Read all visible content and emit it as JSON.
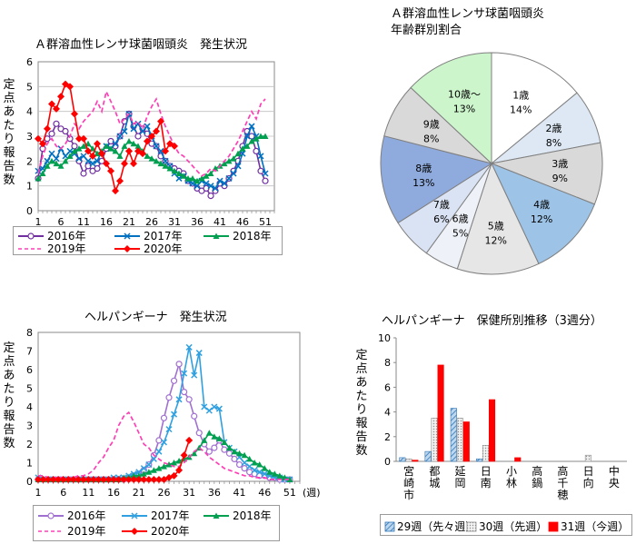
{
  "chart_data": [
    {
      "id": "strep",
      "type": "line",
      "title": "Ａ群溶血性レンサ球菌咽頭炎　発生状況",
      "ylabel": "定点あたり報告数",
      "ylim": [
        0,
        6
      ],
      "yticks": [
        "0",
        "1",
        "2",
        "3",
        "4",
        "5",
        "6"
      ],
      "xlim": [
        1,
        53
      ],
      "xticks": [
        "1",
        "6",
        "11",
        "16",
        "21",
        "26",
        "31",
        "36",
        "41",
        "46",
        "51"
      ],
      "grid": true,
      "legend_position": "bottom",
      "series": [
        {
          "name": "2016年",
          "color": "#7030a0",
          "marker": "circle",
          "dash": false,
          "values": [
            1.3,
            2.5,
            2.9,
            3.1,
            3.5,
            3.3,
            3.2,
            2.9,
            2.6,
            2.0,
            1.5,
            1.8,
            1.6,
            1.7,
            2.0,
            2.5,
            2.8,
            2.6,
            3.0,
            3.6,
            3.9,
            3.4,
            3.0,
            3.3,
            3.1,
            2.7,
            2.6,
            2.2,
            2.0,
            1.8,
            1.7,
            1.6,
            1.5,
            1.2,
            1.1,
            0.9,
            0.8,
            0.9,
            0.6,
            0.8,
            1.1,
            1.0,
            1.3,
            1.6,
            2.0,
            2.6,
            3.2,
            3.0,
            2.4,
            1.6,
            1.2
          ]
        },
        {
          "name": "2017年",
          "color": "#0070c0",
          "marker": "x",
          "dash": false,
          "values": [
            1.6,
            1.7,
            2.0,
            2.3,
            2.1,
            2.5,
            2.2,
            2.4,
            2.3,
            2.1,
            2.2,
            2.0,
            1.9,
            2.0,
            2.4,
            2.6,
            2.5,
            2.7,
            3.0,
            3.2,
            3.9,
            3.3,
            3.5,
            3.2,
            3.4,
            3.0,
            2.6,
            2.4,
            2.0,
            1.8,
            1.5,
            1.3,
            1.4,
            1.2,
            1.1,
            1.0,
            1.2,
            1.1,
            1.0,
            0.9,
            1.2,
            1.1,
            1.3,
            1.5,
            1.8,
            2.3,
            3.0,
            3.4,
            3.0,
            2.2,
            1.5
          ]
        },
        {
          "name": "2018年",
          "color": "#00a050",
          "marker": "triangle",
          "dash": false,
          "values": [
            1.3,
            1.5,
            1.8,
            2.0,
            1.9,
            1.8,
            2.0,
            2.2,
            2.4,
            2.5,
            2.6,
            2.7,
            2.5,
            2.3,
            2.4,
            2.6,
            2.5,
            2.4,
            2.2,
            2.6,
            2.8,
            2.7,
            2.6,
            2.4,
            2.2,
            2.1,
            2.0,
            1.9,
            1.8,
            1.7,
            1.6,
            1.5,
            1.4,
            1.3,
            1.3,
            1.2,
            1.3,
            1.4,
            1.5,
            1.7,
            1.8,
            1.9,
            2.0,
            2.1,
            2.3,
            2.5,
            2.6,
            2.8,
            2.9,
            3.0,
            3.0
          ]
        },
        {
          "name": "2019年",
          "color": "#ff3fb5",
          "marker": "none",
          "dash": true,
          "values": [
            1.5,
            2.2,
            2.7,
            2.9,
            2.6,
            2.5,
            2.7,
            3.0,
            3.5,
            3.3,
            3.6,
            3.8,
            4.0,
            4.4,
            4.0,
            4.8,
            4.4,
            4.0,
            3.5,
            3.7,
            3.9,
            3.5,
            3.6,
            3.3,
            3.8,
            4.2,
            4.5,
            3.9,
            3.4,
            3.0,
            2.6,
            2.3,
            2.2,
            2.0,
            1.8,
            1.6,
            1.4,
            1.5,
            1.7,
            1.6,
            1.8,
            2.0,
            2.2,
            2.5,
            2.8,
            3.2,
            3.6,
            4.0,
            3.7,
            4.3,
            4.5
          ]
        },
        {
          "name": "2020年",
          "color": "#ff0000",
          "marker": "diamond",
          "dash": false,
          "values": [
            2.9,
            2.7,
            3.3,
            4.3,
            4.1,
            4.6,
            5.1,
            5.0,
            3.9,
            2.9,
            2.9,
            2.4,
            2.2,
            2.7,
            2.3,
            1.9,
            1.6,
            0.8,
            1.2,
            1.9,
            2.4,
            1.9,
            2.4,
            2.3,
            2.8,
            3.0,
            3.2,
            3.6,
            2.4,
            2.7,
            2.6
          ]
        }
      ]
    },
    {
      "id": "strep_age",
      "type": "pie",
      "title": "Ａ群溶血性レンサ球菌咽頭炎",
      "subtitle": "年齢群別割合",
      "slices": [
        {
          "label": "1歳",
          "pct_label": "14%",
          "value": 14,
          "color": "#ffffff"
        },
        {
          "label": "2歳",
          "pct_label": "8%",
          "value": 8,
          "color": "#dde8f4"
        },
        {
          "label": "3歳",
          "pct_label": "9%",
          "value": 9,
          "color": "#d9d9d9"
        },
        {
          "label": "4歳",
          "pct_label": "12%",
          "value": 12,
          "color": "#9dc3e6"
        },
        {
          "label": "5歳",
          "pct_label": "12%",
          "value": 12,
          "color": "#e7e6e6"
        },
        {
          "label": "6歳",
          "pct_label": "5%",
          "value": 5,
          "color": "#eef2f8"
        },
        {
          "label": "7歳",
          "pct_label": "6%",
          "value": 6,
          "color": "#dae3f3"
        },
        {
          "label": "8歳",
          "pct_label": "13%",
          "value": 13,
          "color": "#8faadc"
        },
        {
          "label": "9歳",
          "pct_label": "8%",
          "value": 8,
          "color": "#d9d9d9"
        },
        {
          "label": "10歳～",
          "pct_label": "13%",
          "value": 13,
          "color": "#ccf5cc"
        }
      ]
    },
    {
      "id": "herpangina",
      "type": "line",
      "title": "ヘルパンギーナ　発生状況",
      "ylabel": "定点あたり報告数",
      "ylim": [
        0,
        8
      ],
      "yticks": [
        "0",
        "1",
        "2",
        "3",
        "4",
        "5",
        "6",
        "7",
        "8"
      ],
      "xlim": [
        1,
        53
      ],
      "xticks": [
        "1",
        "6",
        "11",
        "16",
        "21",
        "26",
        "31",
        "36",
        "41",
        "46",
        "51"
      ],
      "xunit": "(週)",
      "grid": false,
      "legend_position": "bottom",
      "series": [
        {
          "name": "2016年",
          "color": "#a070d0",
          "marker": "circle",
          "dash": false,
          "values": [
            0.1,
            0.1,
            0.1,
            0.1,
            0.1,
            0.1,
            0.1,
            0.1,
            0.1,
            0.1,
            0.1,
            0.1,
            0.1,
            0.1,
            0.1,
            0.1,
            0.1,
            0.1,
            0.2,
            0.3,
            0.4,
            0.6,
            0.9,
            1.4,
            2.2,
            3.4,
            4.5,
            5.4,
            6.3,
            4.8,
            4.4,
            3.5,
            2.6,
            2.0,
            1.6,
            1.8,
            2.2,
            1.7,
            1.5,
            1.2,
            0.9,
            0.7,
            0.5,
            0.4,
            0.3,
            0.3,
            0.2,
            0.2,
            0.1,
            0.1,
            0.1
          ]
        },
        {
          "name": "2017年",
          "color": "#30a0e0",
          "marker": "x",
          "dash": false,
          "values": [
            0.2,
            0.1,
            0.1,
            0.1,
            0.1,
            0.1,
            0.1,
            0.1,
            0.1,
            0.1,
            0.1,
            0.1,
            0.1,
            0.1,
            0.1,
            0.2,
            0.2,
            0.2,
            0.3,
            0.4,
            0.5,
            0.7,
            0.9,
            1.2,
            1.6,
            2.1,
            2.8,
            3.6,
            4.4,
            5.8,
            7.2,
            5.7,
            6.9,
            4.0,
            3.8,
            4.0,
            3.9,
            2.1,
            1.8,
            1.6,
            1.3,
            1.0,
            0.8,
            0.6,
            0.5,
            0.4,
            0.3,
            0.2,
            0.2,
            0.1,
            0.1
          ]
        },
        {
          "name": "2018年",
          "color": "#00a050",
          "marker": "triangle",
          "dash": false,
          "values": [
            0.1,
            0.1,
            0.1,
            0.1,
            0.1,
            0.1,
            0.1,
            0.1,
            0.1,
            0.1,
            0.1,
            0.1,
            0.1,
            0.1,
            0.1,
            0.1,
            0.1,
            0.2,
            0.2,
            0.3,
            0.3,
            0.4,
            0.5,
            0.6,
            0.7,
            0.8,
            0.9,
            1.0,
            1.1,
            1.2,
            1.3,
            1.5,
            1.8,
            2.2,
            2.6,
            2.4,
            2.3,
            2.1,
            1.8,
            1.6,
            1.5,
            1.4,
            1.2,
            1.0,
            0.9,
            0.7,
            0.5,
            0.4,
            0.3,
            0.2,
            0.1
          ]
        },
        {
          "name": "2019年",
          "color": "#ff3fb5",
          "marker": "none",
          "dash": true,
          "values": [
            0.3,
            0.3,
            0.2,
            0.2,
            0.2,
            0.2,
            0.2,
            0.2,
            0.3,
            0.3,
            0.4,
            0.6,
            1.0,
            1.3,
            1.8,
            2.2,
            3.0,
            3.5,
            3.7,
            3.2,
            2.6,
            2.0,
            1.8,
            1.4,
            1.2,
            1.0,
            0.9,
            0.8,
            0.8,
            1.0,
            1.3,
            1.6,
            1.8,
            1.6,
            1.3,
            1.1,
            0.9,
            0.7,
            0.6,
            0.5,
            0.4,
            0.3,
            0.3,
            0.2,
            0.2,
            0.2,
            0.1,
            0.1,
            0.1,
            0.1,
            0.1
          ]
        },
        {
          "name": "2020年",
          "color": "#ff0000",
          "marker": "diamond",
          "dash": false,
          "values": [
            0.1,
            0.1,
            0.1,
            0.1,
            0.1,
            0.1,
            0.1,
            0.1,
            0.1,
            0.1,
            0.1,
            0.1,
            0.1,
            0.1,
            0.1,
            0.1,
            0.1,
            0.1,
            0.1,
            0.1,
            0.1,
            0.1,
            0.1,
            0.1,
            0.1,
            0.1,
            0.2,
            0.3,
            0.6,
            1.4,
            2.2
          ]
        }
      ]
    },
    {
      "id": "herpangina_offices",
      "type": "bar",
      "title": "ヘルパンギーナ　保健所別推移（3週分）",
      "ylabel": "定点あたり報告数",
      "ylim": [
        0,
        10
      ],
      "yticks": [
        "0",
        "2",
        "4",
        "6",
        "8",
        "10"
      ],
      "categories": [
        "宮崎市",
        "都城",
        "延岡",
        "日南",
        "小林",
        "高鍋",
        "高千穂",
        "日向",
        "中央"
      ],
      "legend_position": "bottom",
      "series": [
        {
          "name": "29週（先々週）",
          "color": "#5b9bd5",
          "pattern": "hatch",
          "values": [
            0.3,
            0.8,
            4.3,
            0.2,
            0.0,
            0.0,
            0.0,
            0.0,
            0.0
          ]
        },
        {
          "name": "30週（先週）",
          "color": "#d9d9d9",
          "pattern": "dots",
          "values": [
            0.2,
            3.5,
            3.5,
            1.3,
            0.0,
            0.0,
            0.0,
            0.5,
            0.0
          ]
        },
        {
          "name": "31週（今週）",
          "color": "#ff0000",
          "pattern": "solid",
          "values": [
            0.1,
            7.8,
            3.2,
            5.0,
            0.3,
            0.0,
            0.0,
            0.0,
            0.0
          ]
        }
      ]
    }
  ]
}
